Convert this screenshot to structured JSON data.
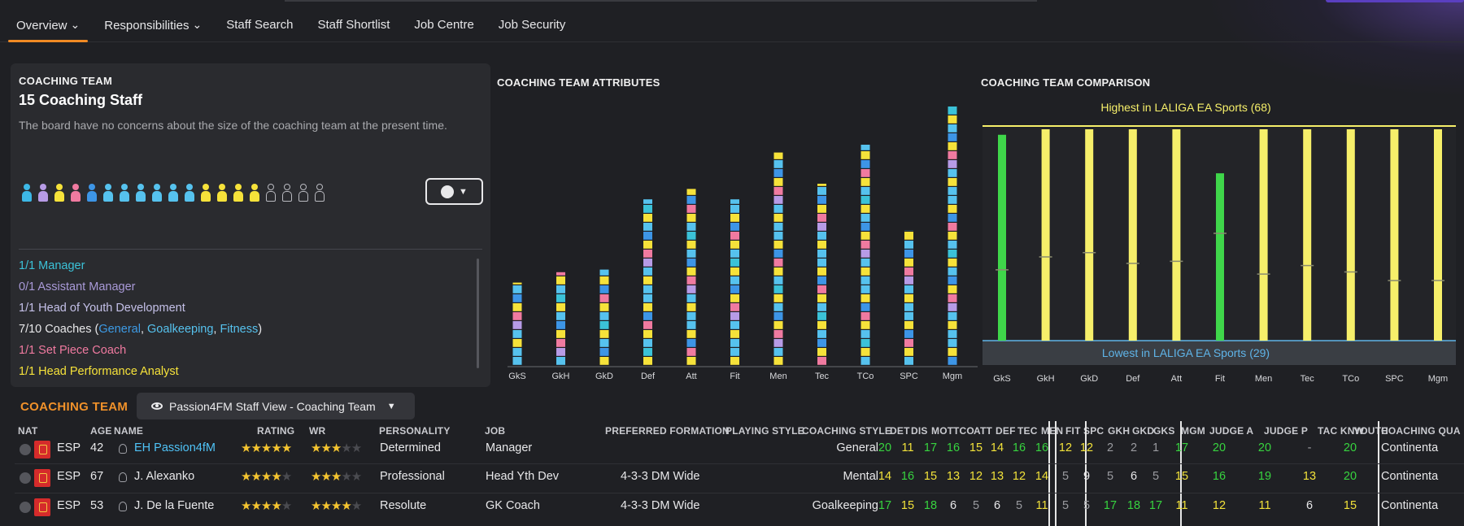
{
  "nav": {
    "items": [
      {
        "label": "Overview",
        "dropdown": true,
        "active": true
      },
      {
        "label": "Responsibilities",
        "dropdown": true,
        "active": false
      },
      {
        "label": "Staff Search",
        "dropdown": false,
        "active": false
      },
      {
        "label": "Staff Shortlist",
        "dropdown": false,
        "active": false
      },
      {
        "label": "Job Centre",
        "dropdown": false,
        "active": false
      },
      {
        "label": "Job Security",
        "dropdown": false,
        "active": false
      }
    ]
  },
  "coaching_team": {
    "header": "COACHING TEAM",
    "title": "15 Coaching Staff",
    "description": "The board have no concerns about the size of the coaching team at the present time.",
    "people_colors": [
      "#3db8e6",
      "#b79be6",
      "#f6e23a",
      "#f07aa0",
      "#3d95e6",
      "#56c2ee",
      "#56c2ee",
      "#56c2ee",
      "#56c2ee",
      "#56c2ee",
      "#56c2ee",
      "#f6e23a",
      "#f6e23a",
      "#f6e23a",
      "#f6e23a"
    ],
    "empty_slots": 4,
    "roles": [
      {
        "text": "1/1 Manager",
        "color": "#3bc2d8"
      },
      {
        "text": "0/1 Assistant Manager",
        "color": "#a99ad8"
      },
      {
        "text": "1/1 Head of Youth Development",
        "color": "#c4c0e8"
      },
      {
        "text_prefix": "7/10 Coaches (",
        "links": [
          "General",
          "Goalkeeping",
          "Fitness"
        ],
        "text_suffix": ")",
        "color": "#e8e8ea",
        "link_colors": [
          "#3d9be6",
          "#56c2ee",
          "#56c2ee"
        ]
      },
      {
        "text": "1/1 Set Piece Coach",
        "color": "#f07aa0"
      },
      {
        "text": "1/1 Head Performance Analyst",
        "color": "#f6e23a"
      }
    ]
  },
  "chart_data": [
    {
      "type": "bar",
      "title": "COACHING TEAM ATTRIBUTES",
      "stacked": true,
      "categories": [
        "GkS",
        "GkH",
        "GkD",
        "Def",
        "Att",
        "Fit",
        "Men",
        "Tec",
        "TCo",
        "SPC",
        "Mgm"
      ],
      "values": [
        32,
        36,
        37,
        64,
        68,
        64,
        82,
        70,
        85,
        52,
        100
      ],
      "colors": {
        "manager": "#3bc2d8",
        "youth": "#b79be6",
        "set_piece": "#f07aa0",
        "analyst": "#f6e23a",
        "gk": "#3d95e6",
        "coach": "#56c2ee"
      }
    },
    {
      "type": "bar",
      "title": "COACHING TEAM COMPARISON",
      "categories": [
        "GkS",
        "GkH",
        "GkD",
        "Def",
        "Att",
        "Fit",
        "Men",
        "Tec",
        "TCo",
        "SPC",
        "Mgm"
      ],
      "highest_label": "Highest in LALIGA EA Sports (68)",
      "lowest_label": "Lowest in LALIGA EA Sports (29)",
      "highest": 68,
      "lowest": 29,
      "values": [
        67,
        68,
        68,
        68,
        68,
        60,
        68,
        68,
        68,
        68,
        68
      ],
      "marker_fractions": [
        0.33,
        0.39,
        0.41,
        0.36,
        0.37,
        0.5,
        0.31,
        0.35,
        0.32,
        0.28,
        0.28
      ],
      "bar_colors": [
        "#3fd64a",
        "#f6ef6a",
        "#f6ef6a",
        "#f6ef6a",
        "#f6ef6a",
        "#3fd64a",
        "#f6ef6a",
        "#f6ef6a",
        "#f6ef6a",
        "#f6ef6a",
        "#f6ef6a"
      ]
    }
  ],
  "table": {
    "section_title": "COACHING TEAM",
    "view_label": "Passion4FM Staff View - Coaching Team",
    "headers": [
      "NAT",
      "AGE",
      "NAME",
      "RATING",
      "WR",
      "PERSONALITY",
      "JOB",
      "PREFERRED FORMATION",
      "PLAYING STYLE",
      "COACHING STYLE",
      "DET",
      "DIS",
      "MOT",
      "TCO",
      "ATT",
      "DEF",
      "TEC",
      "MEN",
      "FIT",
      "SPC",
      "GKH",
      "GKD",
      "GKS",
      "MGM",
      "JUDGE A",
      "JUDGE P",
      "TAC KNW",
      "YOUTH",
      "COACHING QUA"
    ],
    "rows": [
      {
        "nat": "ESP",
        "age": "42",
        "name": "EH Passion4fM",
        "name_color": "#4fc3f7",
        "rating": 4.5,
        "wr": 3,
        "personality": "Determined",
        "job": "Manager",
        "formation": "",
        "coaching_style": "General",
        "vals": [
          "20",
          "11",
          "17",
          "16",
          "15",
          "14",
          "16",
          "16",
          "12",
          "12",
          "2",
          "2",
          "1",
          "17",
          "20",
          "20",
          "-",
          "20"
        ],
        "colors": [
          "#37d43f",
          "#f2e23a",
          "#37d43f",
          "#37d43f",
          "#f2e23a",
          "#f2e23a",
          "#37d43f",
          "#37d43f",
          "#f2e23a",
          "#f2e23a",
          "#9a9ba0",
          "#9a9ba0",
          "#9a9ba0",
          "#37d43f",
          "#37d43f",
          "#37d43f",
          "#9a9ba0",
          "#37d43f"
        ],
        "qual": "Continenta"
      },
      {
        "nat": "ESP",
        "age": "67",
        "name": "J. Alexanko",
        "name_color": "#e8e8ea",
        "rating": 4,
        "wr": 3,
        "personality": "Professional",
        "job": "Head Yth Dev",
        "formation": "4-3-3 DM Wide",
        "coaching_style": "Mental",
        "vals": [
          "14",
          "16",
          "15",
          "13",
          "12",
          "13",
          "12",
          "14",
          "5",
          "9",
          "5",
          "6",
          "5",
          "15",
          "16",
          "19",
          "13",
          "20"
        ],
        "colors": [
          "#f2e23a",
          "#37d43f",
          "#f2e23a",
          "#f2e23a",
          "#f2e23a",
          "#f2e23a",
          "#f2e23a",
          "#f2e23a",
          "#9a9ba0",
          "#e8e8ea",
          "#9a9ba0",
          "#e8e8ea",
          "#9a9ba0",
          "#f2e23a",
          "#37d43f",
          "#37d43f",
          "#f2e23a",
          "#37d43f"
        ],
        "qual": "Continenta"
      },
      {
        "nat": "ESP",
        "age": "53",
        "name": "J. De la Fuente",
        "name_color": "#e8e8ea",
        "rating": 4,
        "wr": 3.5,
        "personality": "Resolute",
        "job": "GK Coach",
        "formation": "4-3-3 DM Wide",
        "coaching_style": "Goalkeeping",
        "vals": [
          "17",
          "15",
          "18",
          "6",
          "5",
          "6",
          "5",
          "11",
          "5",
          "5",
          "17",
          "18",
          "17",
          "11",
          "12",
          "11",
          "6",
          "15"
        ],
        "colors": [
          "#37d43f",
          "#f2e23a",
          "#37d43f",
          "#e8e8ea",
          "#9a9ba0",
          "#e8e8ea",
          "#9a9ba0",
          "#f2e23a",
          "#9a9ba0",
          "#9a9ba0",
          "#37d43f",
          "#37d43f",
          "#37d43f",
          "#f2e23a",
          "#f2e23a",
          "#f2e23a",
          "#e8e8ea",
          "#f2e23a"
        ],
        "qual": "Continenta"
      }
    ]
  }
}
